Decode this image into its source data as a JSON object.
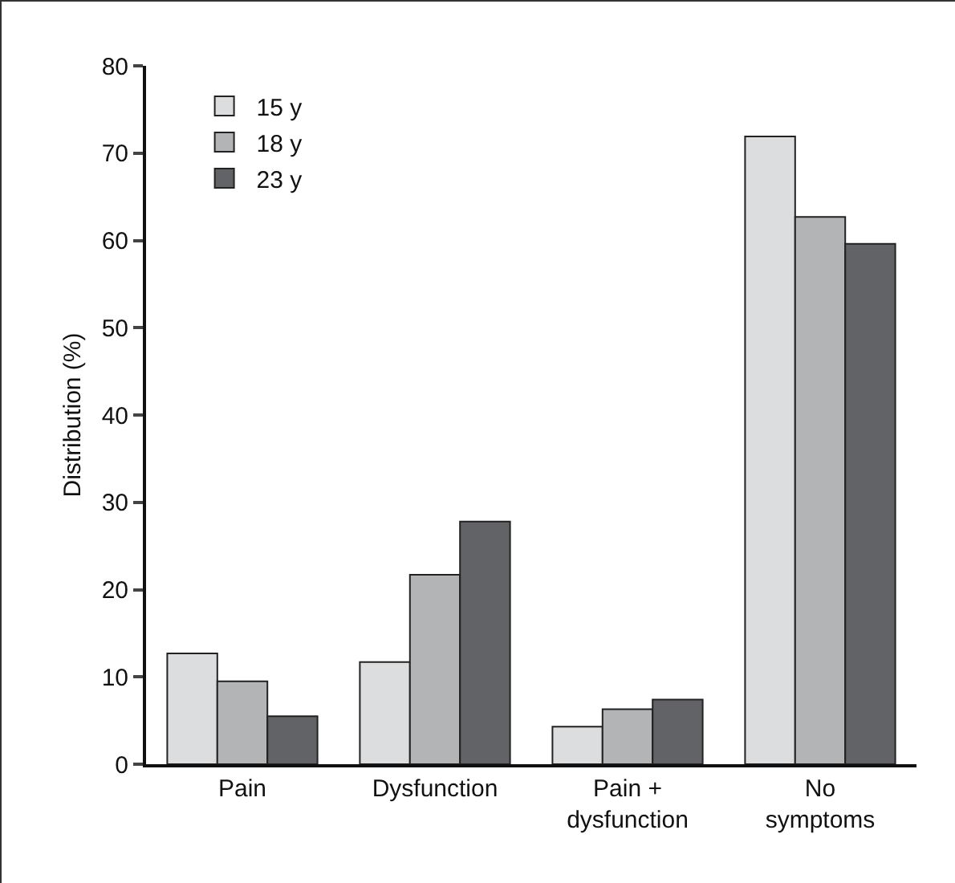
{
  "chart_data": {
    "type": "bar",
    "ylabel": "Distribution (%)",
    "categories": [
      "Pain",
      "Dysfunction",
      "Pain +\ndysfunction",
      "No\nsymptoms"
    ],
    "series": [
      {
        "name": "15 y",
        "color": "#dcdddf",
        "values": [
          12.7,
          11.7,
          4.3,
          71.9
        ]
      },
      {
        "name": "18 y",
        "color": "#b3b4b6",
        "values": [
          9.5,
          21.7,
          6.3,
          62.7
        ]
      },
      {
        "name": "23 y",
        "color": "#626366",
        "values": [
          5.5,
          27.8,
          7.4,
          59.6
        ]
      }
    ],
    "ylim": [
      0,
      80
    ],
    "yticks": [
      0,
      10,
      20,
      30,
      40,
      50,
      60,
      70,
      80
    ],
    "grid": false,
    "legend": "top left"
  }
}
